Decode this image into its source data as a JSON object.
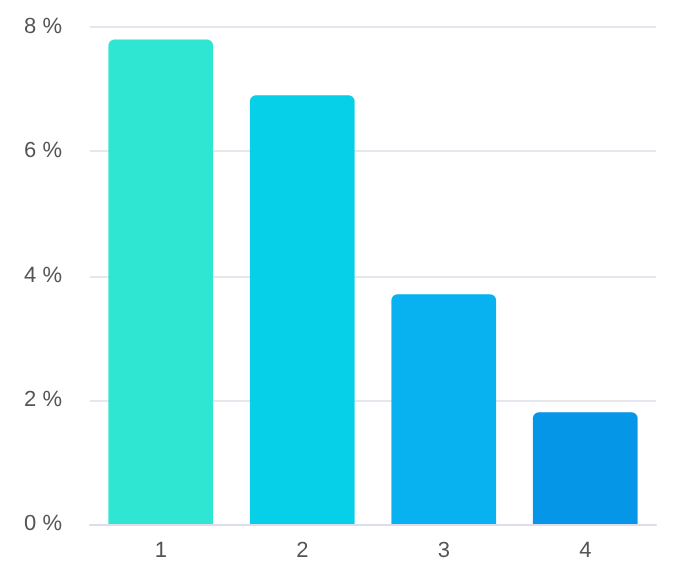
{
  "chart_data": {
    "type": "bar",
    "categories": [
      "1",
      "2",
      "3",
      "4"
    ],
    "values": [
      7.8,
      6.9,
      3.7,
      1.8
    ],
    "colors": [
      "#2ee6d2",
      "#06cfe8",
      "#08b2f0",
      "#0596e8"
    ],
    "ylim": [
      0,
      8
    ],
    "yticks": [
      {
        "value": 0,
        "label": "0 %"
      },
      {
        "value": 2,
        "label": "2 %"
      },
      {
        "value": 4,
        "label": "4 %"
      },
      {
        "value": 6,
        "label": "6 %"
      },
      {
        "value": 8,
        "label": "8 %"
      }
    ],
    "grid": "y"
  }
}
